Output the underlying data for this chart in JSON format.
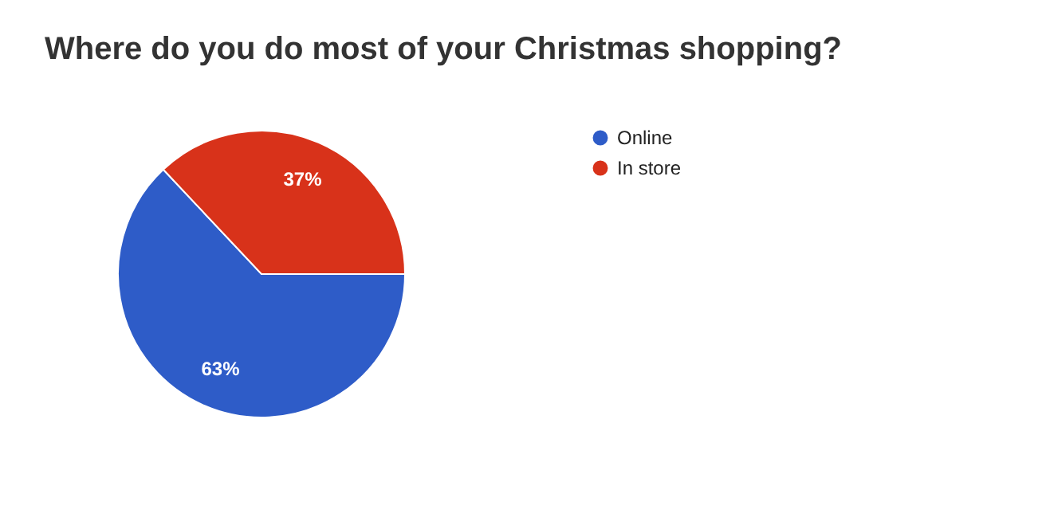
{
  "chart_data": {
    "type": "pie",
    "title": "Where do you do most of your Christmas shopping?",
    "categories": [
      "Online",
      "In store"
    ],
    "values": [
      63,
      37
    ],
    "colors": [
      "#2e5cc8",
      "#d8321a"
    ],
    "value_labels": [
      "63%",
      "37%"
    ],
    "legend": "top right"
  }
}
